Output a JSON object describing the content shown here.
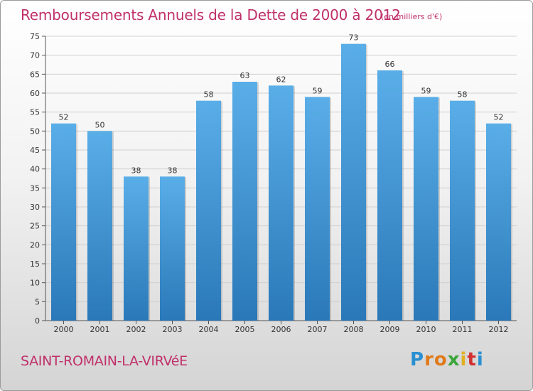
{
  "chart_data": {
    "type": "bar",
    "title": "Remboursements Annuels de la Dette de 2000 à 2012",
    "subtitle": "(en milliers d'€)",
    "categories": [
      "2000",
      "2001",
      "2002",
      "2003",
      "2004",
      "2005",
      "2006",
      "2007",
      "2008",
      "2009",
      "2010",
      "2011",
      "2012"
    ],
    "values": [
      52,
      50,
      38,
      38,
      58,
      63,
      62,
      59,
      73,
      66,
      59,
      58,
      52
    ],
    "ylim": [
      0,
      75
    ],
    "yticks": [
      0,
      5,
      10,
      15,
      20,
      25,
      30,
      35,
      40,
      45,
      50,
      55,
      60,
      65,
      70,
      75
    ],
    "grid": true,
    "bar_color_top": "#5aaee8",
    "bar_color_bottom": "#2a78b8"
  },
  "commune": "SAINT-ROMAIN-LA-VIRVéE",
  "logo": {
    "letters": [
      "P",
      "r",
      "o",
      "x",
      "i",
      "t",
      "i"
    ],
    "colors": [
      "#2a8fd0",
      "#e07a1a",
      "#e07a1a",
      "#3aa63a",
      "#e0b020",
      "#d03030",
      "#2a8fd0"
    ]
  }
}
